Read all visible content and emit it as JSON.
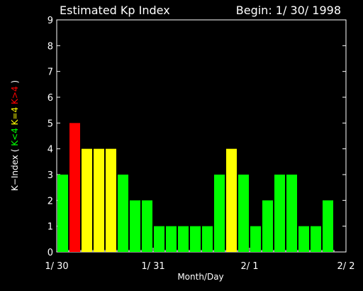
{
  "header": {
    "title": "Estimated Kp Index",
    "begin_label": "Begin: 1/ 30/ 1998"
  },
  "y_label": {
    "prefix": "K−Index  (",
    "green_part": "K<4",
    "yellow_part": "K=4",
    "red_part": "K>4",
    "suffix": ")"
  },
  "colors": {
    "below": "#00ff00",
    "equal": "#ffff00",
    "above": "#ff0000",
    "axis": "#ffffff",
    "background": "#000000"
  },
  "chart_data": {
    "type": "bar",
    "title": "Estimated Kp Index",
    "xlabel": "Month/Day",
    "ylabel": "K−Index  ( K<4  K=4  K>4 )",
    "ylim": [
      0,
      9
    ],
    "yticks": [
      "0",
      "1",
      "2",
      "3",
      "4",
      "5",
      "6",
      "7",
      "8",
      "9"
    ],
    "xlim_hours": [
      0,
      72
    ],
    "xticks": [
      {
        "label": "1/ 30",
        "hour": 0
      },
      {
        "label": "1/ 31",
        "hour": 24
      },
      {
        "label": "2/ 1",
        "hour": 48
      },
      {
        "label": "2/ 2",
        "hour": 72
      }
    ],
    "interval_hours": 3,
    "values": [
      3,
      5,
      4,
      4,
      4,
      3,
      2,
      2,
      1,
      1,
      1,
      1,
      1,
      3,
      4,
      3,
      1,
      2,
      3,
      3,
      1,
      1,
      2
    ]
  }
}
